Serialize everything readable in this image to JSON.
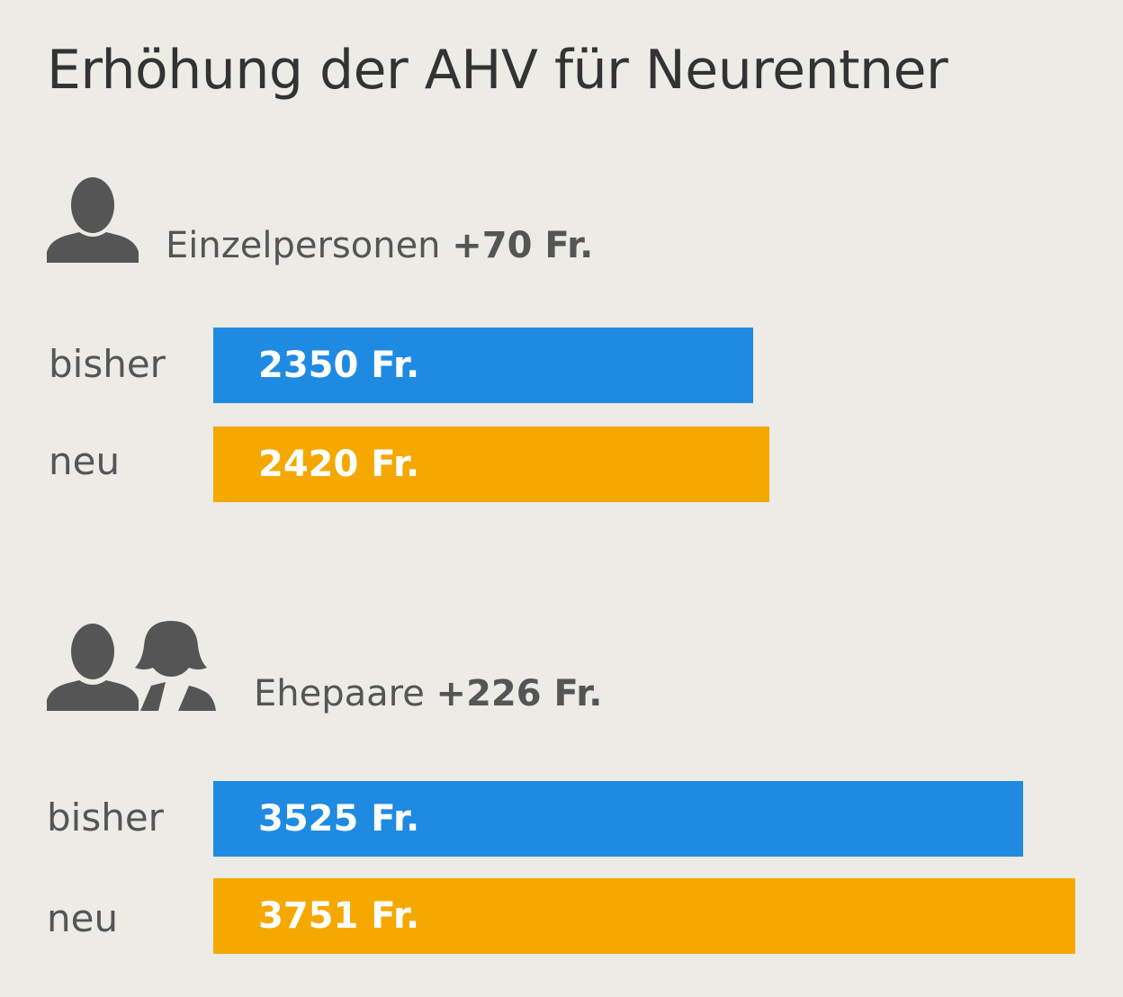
{
  "title": "Erhöhung der AHV für Neurentner",
  "colors": {
    "bisher": "#1f8ae2",
    "neu": "#f5a800",
    "icon": "#555555",
    "background": "#ecebe6"
  },
  "chart_data": [
    {
      "type": "bar",
      "orientation": "horizontal",
      "group_label": "Einzelpersonen",
      "increase": "+70 Fr.",
      "icon": "single-person-icon",
      "categories": [
        "bisher",
        "neu"
      ],
      "values": [
        2350,
        2420
      ],
      "value_labels": [
        "2350 Fr.",
        "2420 Fr."
      ],
      "unit": "Fr.",
      "xlim": [
        0,
        3751
      ]
    },
    {
      "type": "bar",
      "orientation": "horizontal",
      "group_label": "Ehepaare",
      "increase": "+226 Fr.",
      "icon": "couple-icon",
      "categories": [
        "bisher",
        "neu"
      ],
      "values": [
        3525,
        3751
      ],
      "value_labels": [
        "3525 Fr.",
        "3751 Fr."
      ],
      "unit": "Fr.",
      "xlim": [
        0,
        3751
      ]
    }
  ]
}
